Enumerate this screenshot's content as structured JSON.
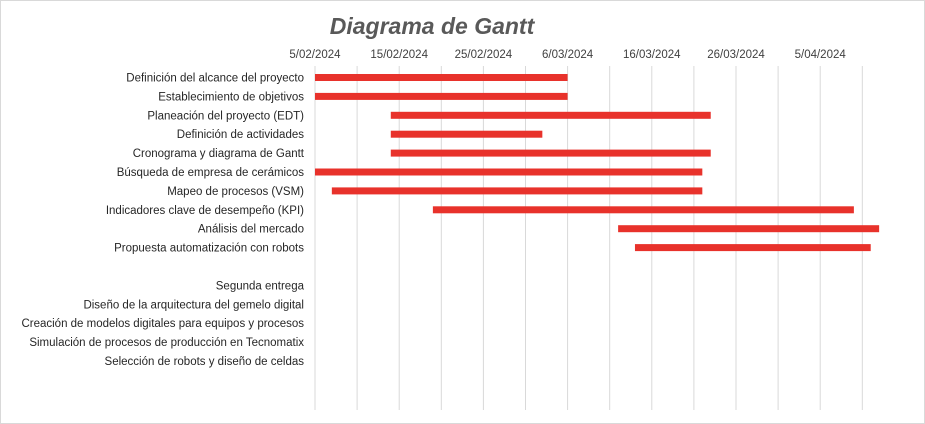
{
  "colors": {
    "bar": "#e8322b",
    "grid": "#d9d9d9",
    "title": "#595959"
  },
  "chart_data": {
    "type": "gantt",
    "title": "Diagrama de Gantt",
    "x_axis": {
      "type": "date",
      "min": "2024-02-05",
      "max": "2024-04-13",
      "tick_positions": [
        "2024-02-05",
        "2024-02-15",
        "2024-02-25",
        "2024-03-06",
        "2024-03-16",
        "2024-03-26",
        "2024-04-05"
      ],
      "tick_labels": [
        "5/02/2024",
        "15/02/2024",
        "25/02/2024",
        "6/03/2024",
        "16/03/2024",
        "26/03/2024",
        "5/04/2024"
      ],
      "minor_grid_step_days": 5,
      "position": "top"
    },
    "grid": true,
    "legend": "none",
    "tasks": [
      {
        "name": "Definición del alcance del proyecto",
        "start": "2024-02-05",
        "end": "2024-03-06"
      },
      {
        "name": "Establecimiento de objetivos",
        "start": "2024-02-05",
        "end": "2024-03-06"
      },
      {
        "name": "Planeación del proyecto (EDT)",
        "start": "2024-02-14",
        "end": "2024-03-23"
      },
      {
        "name": "Definición de actividades",
        "start": "2024-02-14",
        "end": "2024-03-03"
      },
      {
        "name": "Cronograma y diagrama de Gantt",
        "start": "2024-02-14",
        "end": "2024-03-23"
      },
      {
        "name": "Búsqueda de empresa de cerámicos",
        "start": "2024-02-05",
        "end": "2024-03-22"
      },
      {
        "name": "Mapeo de procesos (VSM)",
        "start": "2024-02-07",
        "end": "2024-03-22"
      },
      {
        "name": "Indicadores clave de desempeño (KPI)",
        "start": "2024-02-19",
        "end": "2024-04-09"
      },
      {
        "name": "Análisis del mercado",
        "start": "2024-03-12",
        "end": "2024-04-12"
      },
      {
        "name": "Propuesta automatización con robots",
        "start": "2024-03-14",
        "end": "2024-04-11"
      },
      {
        "name": "",
        "start": null,
        "end": null
      },
      {
        "name": "Segunda entrega",
        "start": null,
        "end": null
      },
      {
        "name": "Diseño de la arquitectura del gemelo digital",
        "start": null,
        "end": null
      },
      {
        "name": "Creación de modelos digitales para equipos y procesos",
        "start": null,
        "end": null
      },
      {
        "name": "Simulación de procesos de producción en Tecnomatix",
        "start": null,
        "end": null
      },
      {
        "name": "Selección de robots y diseño de celdas",
        "start": null,
        "end": null
      }
    ]
  }
}
